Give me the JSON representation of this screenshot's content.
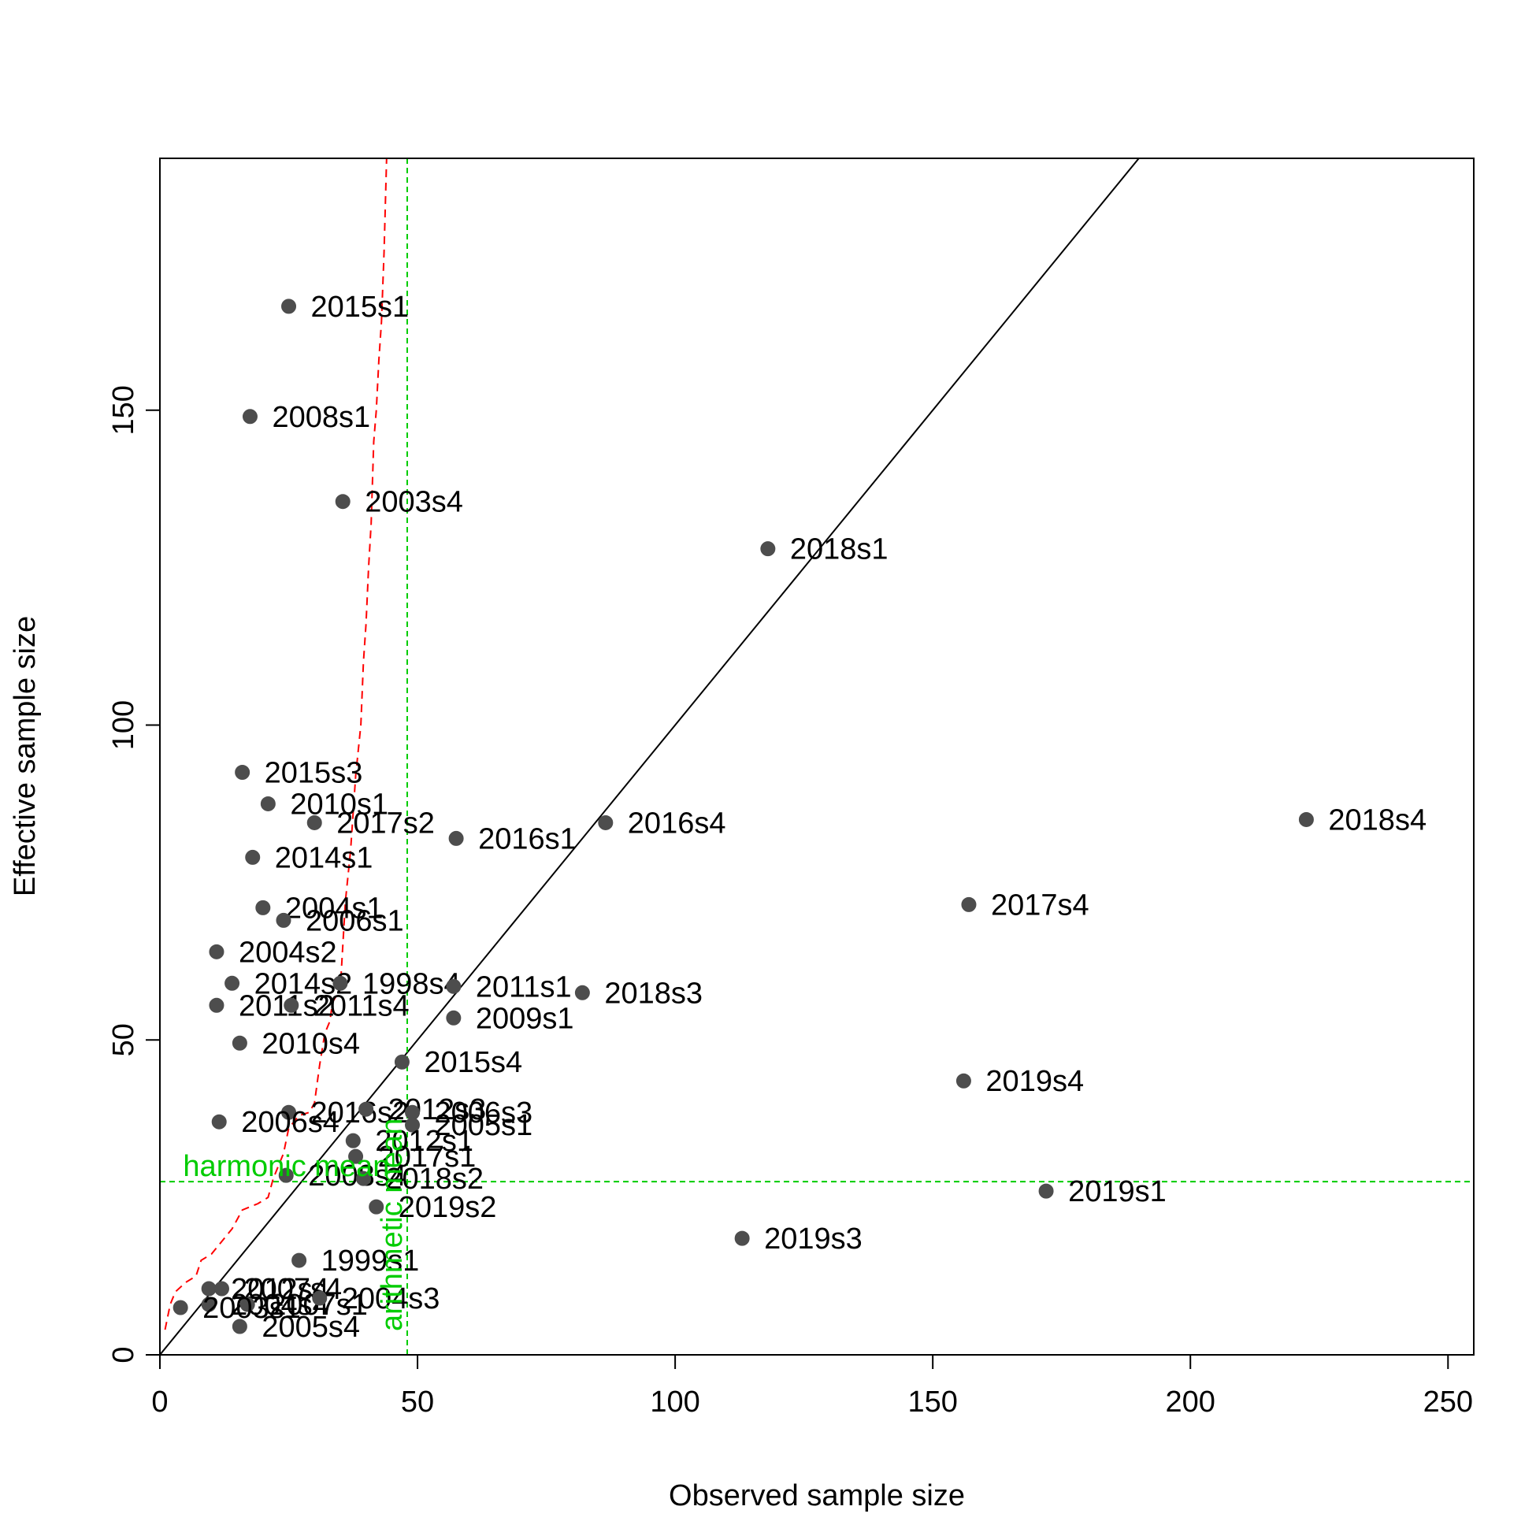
{
  "chart_data": {
    "type": "scatter",
    "xlabel": "Observed sample size",
    "ylabel": "Effective sample size",
    "xlim": [
      0,
      255
    ],
    "ylim": [
      0,
      190
    ],
    "x_ticks": [
      0,
      50,
      100,
      150,
      200,
      250
    ],
    "y_ticks": [
      0,
      50,
      100,
      150
    ],
    "point_color": "#4d4d4d",
    "identity_line_color": "#000000",
    "mean_line_color": "#00cc00",
    "trend_line_color": "#ff0000",
    "reference_lines": {
      "arithmetic_mean_x": 48,
      "arithmetic_mean_label": "arithmetic mean",
      "harmonic_mean_y": 27.5,
      "harmonic_mean_label": "harmonic mean"
    },
    "points": [
      {
        "label": "2015s1",
        "x": 25,
        "y": 166.5
      },
      {
        "label": "2008s1",
        "x": 17.5,
        "y": 149
      },
      {
        "label": "2003s4",
        "x": 35.5,
        "y": 135.5
      },
      {
        "label": "2018s1",
        "x": 118,
        "y": 128
      },
      {
        "label": "2015s3",
        "x": 16,
        "y": 92.5
      },
      {
        "label": "2010s1",
        "x": 21,
        "y": 87.5
      },
      {
        "label": "2017s2",
        "x": 30,
        "y": 84.5
      },
      {
        "label": "2016s1",
        "x": 57.5,
        "y": 82
      },
      {
        "label": "2016s4",
        "x": 86.5,
        "y": 84.5
      },
      {
        "label": "2018s4",
        "x": 222.5,
        "y": 85
      },
      {
        "label": "2014s1",
        "x": 18,
        "y": 79
      },
      {
        "label": "2004s1",
        "x": 20,
        "y": 71
      },
      {
        "label": "2006s1",
        "x": 24,
        "y": 69
      },
      {
        "label": "2017s4",
        "x": 157,
        "y": 71.5
      },
      {
        "label": "2004s2",
        "x": 11,
        "y": 64
      },
      {
        "label": "2014s2",
        "x": 14,
        "y": 59
      },
      {
        "label": "1998s4",
        "x": 35,
        "y": 59
      },
      {
        "label": "2011s1",
        "x": 57,
        "y": 58.5
      },
      {
        "label": "2018s3",
        "x": 82,
        "y": 57.5
      },
      {
        "label": "2011s2",
        "x": 11,
        "y": 55.5
      },
      {
        "label": "2011s4",
        "x": 25.5,
        "y": 55.5
      },
      {
        "label": "2009s1",
        "x": 57,
        "y": 53.5
      },
      {
        "label": "2010s4",
        "x": 15.5,
        "y": 49.5
      },
      {
        "label": "2015s4",
        "x": 47,
        "y": 46.5
      },
      {
        "label": "2019s4",
        "x": 156,
        "y": 43.5
      },
      {
        "label": "2016s2",
        "x": 25,
        "y": 38.5
      },
      {
        "label": "2012s3",
        "x": 40,
        "y": 39
      },
      {
        "label": "2006s3",
        "x": 49,
        "y": 38.5
      },
      {
        "label": "2006s4",
        "x": 11.5,
        "y": 37
      },
      {
        "label": "2005s1",
        "x": 49,
        "y": 36.5
      },
      {
        "label": "2012s1",
        "x": 37.5,
        "y": 34
      },
      {
        "label": "2017s1",
        "x": 38,
        "y": 31.5
      },
      {
        "label": "2008s4",
        "x": 24.5,
        "y": 28.5
      },
      {
        "label": "2018s2",
        "x": 39.5,
        "y": 28
      },
      {
        "label": "2019s1",
        "x": 172,
        "y": 26
      },
      {
        "label": "2019s2",
        "x": 42,
        "y": 23.5
      },
      {
        "label": "2019s3",
        "x": 113,
        "y": 18.5
      },
      {
        "label": "1999s1",
        "x": 27,
        "y": 15
      },
      {
        "label": "2012s4",
        "x": 9.5,
        "y": 10.5
      },
      {
        "label": "2007s4",
        "x": 12,
        "y": 10.5
      },
      {
        "label": "2004s4",
        "x": 9.5,
        "y": 8
      },
      {
        "label": "2007s1",
        "x": 17,
        "y": 8
      },
      {
        "label": "2004s3",
        "x": 31,
        "y": 9
      },
      {
        "label": "2005s4",
        "x": 15.5,
        "y": 4.5
      },
      {
        "label": "2003s1",
        "x": 4,
        "y": 7.5
      }
    ],
    "trend_line": [
      [
        1,
        4
      ],
      [
        2,
        8
      ],
      [
        3,
        10
      ],
      [
        5,
        11.5
      ],
      [
        7,
        12.5
      ],
      [
        8,
        15
      ],
      [
        10,
        16
      ],
      [
        12,
        18
      ],
      [
        14,
        20
      ],
      [
        16,
        23
      ],
      [
        19,
        24
      ],
      [
        21,
        25
      ],
      [
        22,
        28
      ],
      [
        24,
        32
      ],
      [
        25,
        36
      ],
      [
        27,
        38
      ],
      [
        29,
        38.5
      ],
      [
        30,
        40
      ],
      [
        31,
        46
      ],
      [
        32,
        51
      ],
      [
        33,
        53
      ],
      [
        33.5,
        56
      ],
      [
        35,
        58
      ],
      [
        35.5,
        65
      ],
      [
        36,
        72
      ],
      [
        37,
        80
      ],
      [
        38,
        92
      ],
      [
        39,
        100
      ],
      [
        39.5,
        110
      ],
      [
        40,
        116
      ],
      [
        40.5,
        125
      ],
      [
        41,
        132
      ],
      [
        41.5,
        145
      ],
      [
        42,
        150
      ],
      [
        42.5,
        158
      ],
      [
        43,
        164
      ],
      [
        43.5,
        175
      ],
      [
        44,
        190
      ]
    ]
  }
}
